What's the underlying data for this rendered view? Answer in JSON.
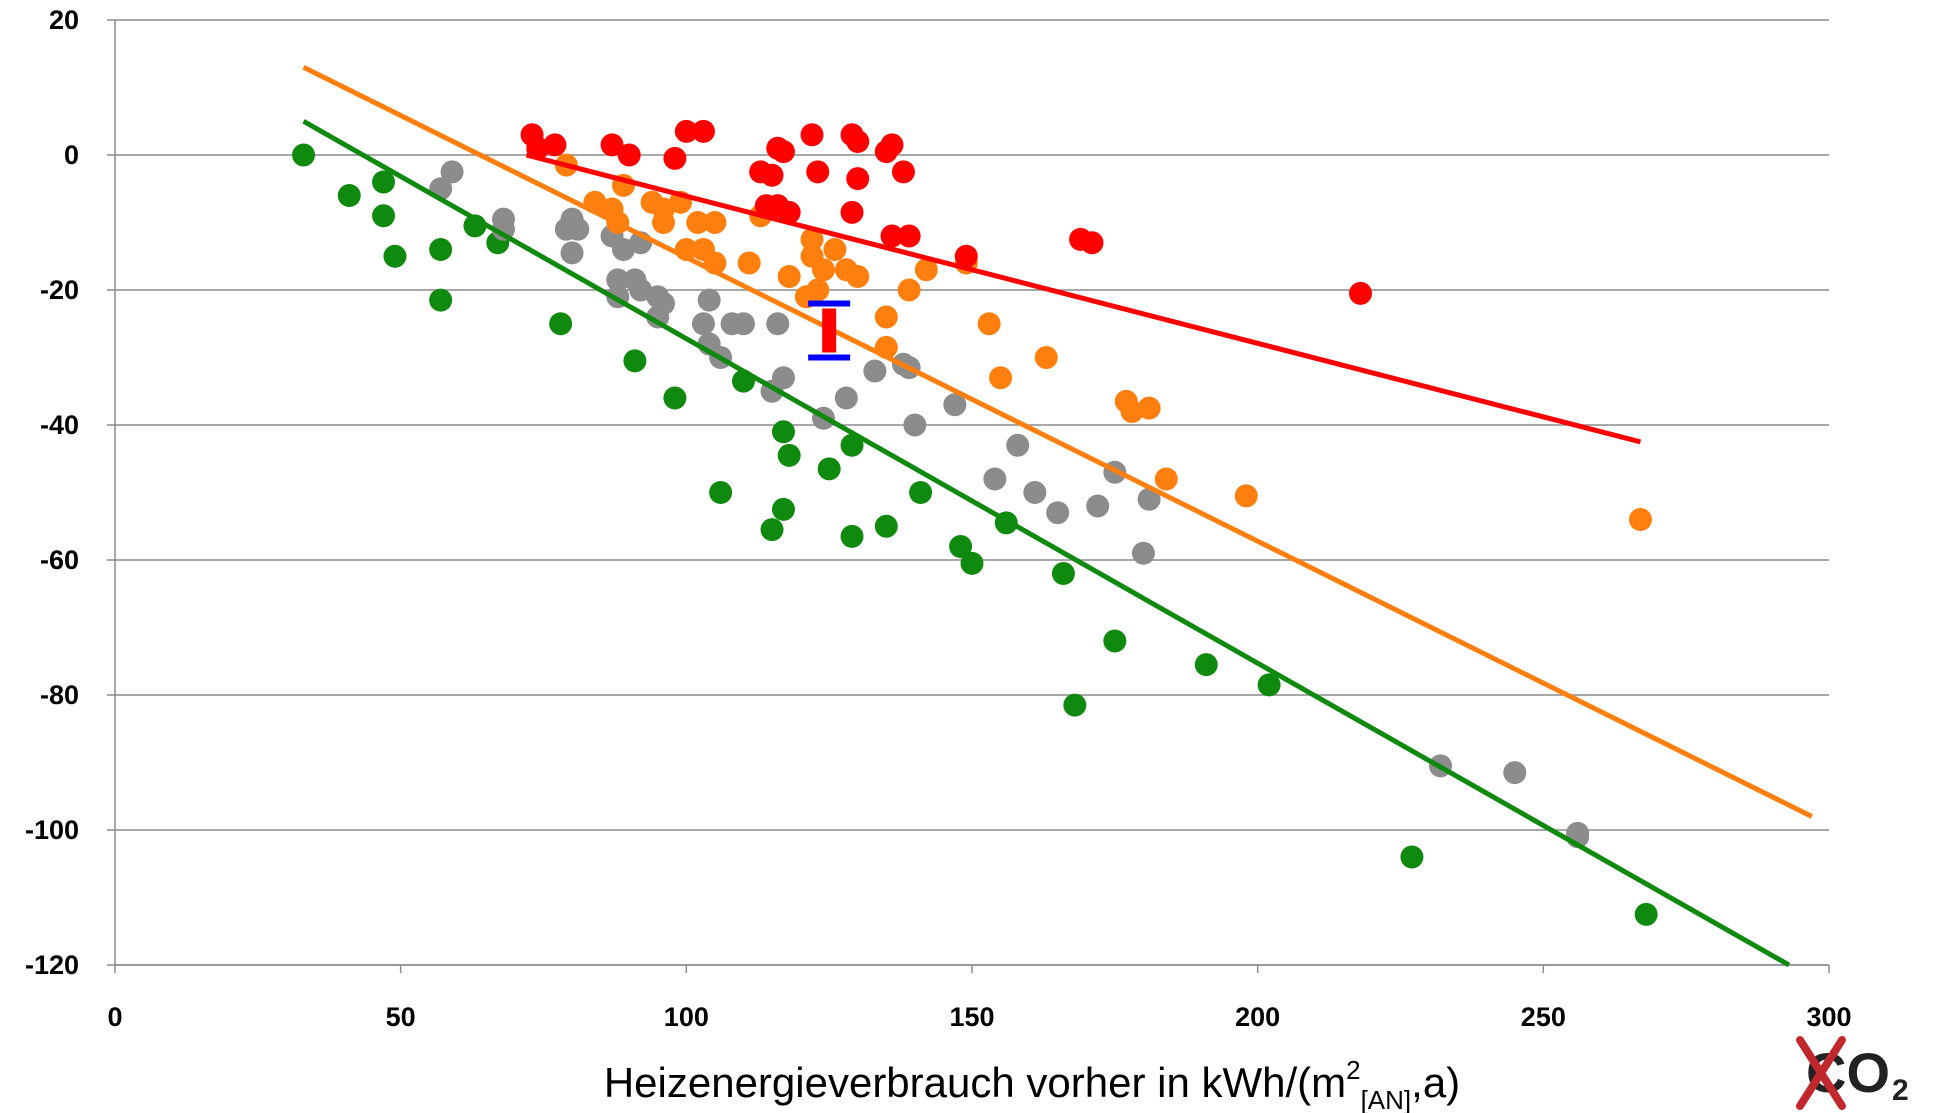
{
  "chart_data": {
    "type": "scatter",
    "xlabel": "Heizenergieverbrauch vorher in kWh/(m²[AN],a)",
    "xlabel_parts": {
      "main": "Heizenergieverbrauch vorher in kWh/(m",
      "sup": "2",
      "sub": "[AN]",
      "tail": ",a)"
    },
    "ylabel": "",
    "xlim": [
      0,
      300
    ],
    "ylim": [
      -120,
      20
    ],
    "x_ticks": [
      "0",
      "50",
      "100",
      "150",
      "200",
      "250",
      "300"
    ],
    "y_ticks": [
      "20",
      "0",
      "-20",
      "-40",
      "-60",
      "-80",
      "-100",
      "-120"
    ],
    "grid": "horizontal",
    "series": [
      {
        "color": "#ff0000",
        "points": [
          [
            73,
            3
          ],
          [
            77,
            1.5
          ],
          [
            74,
            1
          ],
          [
            87,
            1.5
          ],
          [
            90,
            0
          ],
          [
            98,
            -0.5
          ],
          [
            100,
            3.5
          ],
          [
            103,
            3.5
          ],
          [
            113,
            -2.5
          ],
          [
            115,
            -3
          ],
          [
            116,
            1
          ],
          [
            117,
            0.5
          ],
          [
            118,
            -8.5
          ],
          [
            114,
            -7.5
          ],
          [
            116,
            -7.5
          ],
          [
            122,
            3
          ],
          [
            123,
            -2.5
          ],
          [
            129,
            3
          ],
          [
            130,
            2
          ],
          [
            130,
            -3.5
          ],
          [
            129,
            -8.5
          ],
          [
            135,
            0.5
          ],
          [
            136,
            1.5
          ],
          [
            138,
            -2.5
          ],
          [
            136,
            -12
          ],
          [
            139,
            -12
          ],
          [
            149,
            -15
          ],
          [
            169,
            -12.5
          ],
          [
            171,
            -13
          ],
          [
            218,
            -20.5
          ]
        ],
        "trend": [
          [
            72,
            0
          ],
          [
            267,
            -42.5
          ]
        ]
      },
      {
        "color": "#ff7f0e",
        "points": [
          [
            79,
            -1.5
          ],
          [
            84,
            -7
          ],
          [
            87,
            -8
          ],
          [
            88,
            -10
          ],
          [
            89,
            -4.5
          ],
          [
            94,
            -7
          ],
          [
            96,
            -8
          ],
          [
            96,
            -10
          ],
          [
            99,
            -7
          ],
          [
            100,
            -14
          ],
          [
            102,
            -10
          ],
          [
            103,
            -14
          ],
          [
            105,
            -16
          ],
          [
            105,
            -10
          ],
          [
            111,
            -16
          ],
          [
            113,
            -9
          ],
          [
            118,
            -18
          ],
          [
            122,
            -12.5
          ],
          [
            122,
            -15
          ],
          [
            124,
            -17
          ],
          [
            121,
            -21
          ],
          [
            123,
            -20
          ],
          [
            126,
            -14
          ],
          [
            128,
            -17
          ],
          [
            130,
            -18
          ],
          [
            135,
            -24
          ],
          [
            135,
            -28.5
          ],
          [
            139,
            -20
          ],
          [
            142,
            -17
          ],
          [
            149,
            -16
          ],
          [
            153,
            -25
          ],
          [
            155,
            -33
          ],
          [
            163,
            -30
          ],
          [
            177,
            -36.5
          ],
          [
            178,
            -38
          ],
          [
            181,
            -37.5
          ],
          [
            184,
            -48
          ],
          [
            198,
            -50.5
          ],
          [
            267,
            -54
          ]
        ],
        "trend": [
          [
            33,
            13
          ],
          [
            297,
            -98
          ]
        ]
      },
      {
        "color": "#8c8c8c",
        "points": [
          [
            57,
            -5
          ],
          [
            59,
            -2.5
          ],
          [
            68,
            -9.5
          ],
          [
            68,
            -11
          ],
          [
            79,
            -11
          ],
          [
            80,
            -9.5
          ],
          [
            81,
            -11
          ],
          [
            80,
            -14.5
          ],
          [
            87,
            -12
          ],
          [
            88,
            -21
          ],
          [
            88,
            -18.5
          ],
          [
            89,
            -14
          ],
          [
            91,
            -18.5
          ],
          [
            92,
            -13
          ],
          [
            92,
            -20
          ],
          [
            95,
            -21
          ],
          [
            95,
            -24
          ],
          [
            96,
            -22
          ],
          [
            103,
            -25
          ],
          [
            104,
            -21.5
          ],
          [
            104,
            -28
          ],
          [
            106,
            -30
          ],
          [
            108,
            -25
          ],
          [
            110,
            -25
          ],
          [
            115,
            -35
          ],
          [
            116,
            -25
          ],
          [
            117,
            -33
          ],
          [
            124,
            -39
          ],
          [
            128,
            -36
          ],
          [
            133,
            -32
          ],
          [
            138,
            -31
          ],
          [
            139,
            -31.5
          ],
          [
            140,
            -40
          ],
          [
            147,
            -37
          ],
          [
            154,
            -48
          ],
          [
            158,
            -43
          ],
          [
            161,
            -50
          ],
          [
            165,
            -53
          ],
          [
            172,
            -52
          ],
          [
            175,
            -47
          ],
          [
            181,
            -51
          ],
          [
            180,
            -59
          ],
          [
            232,
            -90.5
          ],
          [
            245,
            -91.5
          ],
          [
            256,
            -100.5
          ],
          [
            256,
            -101
          ]
        ],
        "trend": []
      },
      {
        "color": "#0f8a0f",
        "points": [
          [
            33,
            0
          ],
          [
            41,
            -6
          ],
          [
            47,
            -4
          ],
          [
            47,
            -9
          ],
          [
            49,
            -15
          ],
          [
            57,
            -14
          ],
          [
            57,
            -21.5
          ],
          [
            63,
            -10.5
          ],
          [
            67,
            -13
          ],
          [
            78,
            -25
          ],
          [
            91,
            -30.5
          ],
          [
            98,
            -36
          ],
          [
            106,
            -50
          ],
          [
            110,
            -33.5
          ],
          [
            115,
            -55.5
          ],
          [
            117,
            -41
          ],
          [
            117,
            -52.5
          ],
          [
            118,
            -44.5
          ],
          [
            125,
            -46.5
          ],
          [
            129,
            -56.5
          ],
          [
            129,
            -43
          ],
          [
            135,
            -55
          ],
          [
            141,
            -50
          ],
          [
            148,
            -58
          ],
          [
            150,
            -60.5
          ],
          [
            156,
            -54.5
          ],
          [
            166,
            -62
          ],
          [
            168,
            -81.5
          ],
          [
            175,
            -72
          ],
          [
            191,
            -75.5
          ],
          [
            202,
            -78.5
          ],
          [
            227,
            -104
          ],
          [
            268,
            -112.5
          ]
        ],
        "trend": [
          [
            33,
            5
          ],
          [
            293,
            -120
          ]
        ]
      }
    ],
    "error_bar": {
      "x": 125,
      "y_low": -30,
      "y_high": -22,
      "center": -25.5,
      "center_color": "#ff0000",
      "bar_color": "#0000ff"
    }
  },
  "logo": {
    "text": "CO",
    "subscript": "2",
    "mark_color": "#c0282d"
  }
}
